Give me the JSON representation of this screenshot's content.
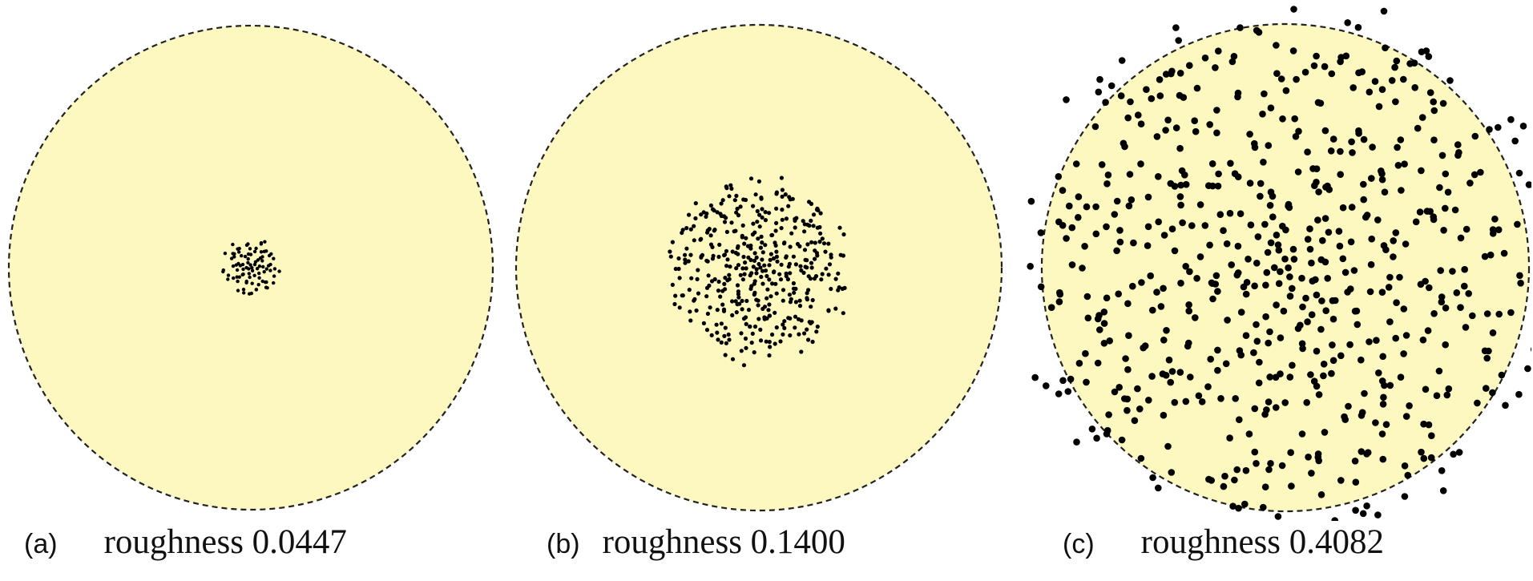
{
  "panels": [
    {
      "id": "a",
      "tag": "(a)",
      "caption": "roughness 0.0447",
      "roughness": 0.0447
    },
    {
      "id": "b",
      "tag": "(b)",
      "caption": "roughness 0.1400",
      "roughness": 0.14
    },
    {
      "id": "c",
      "tag": "(c)",
      "caption": "roughness 0.4082",
      "roughness": 0.4082
    }
  ],
  "colors": {
    "disk_fill": "#fdf8bf",
    "outline": "#222222",
    "dots": "#000000"
  }
}
